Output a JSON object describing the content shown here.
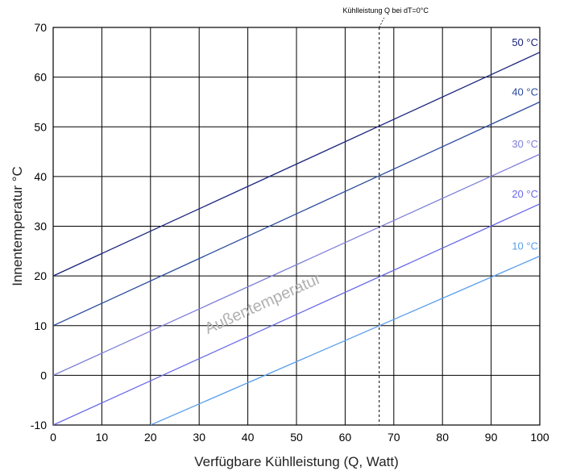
{
  "chart_data": {
    "type": "line",
    "title": "",
    "xlabel": "Verfügbare Kühlleistung (Q, Watt)",
    "ylabel": "Innentemperatur °C",
    "xlim": [
      0,
      100
    ],
    "ylim": [
      -10,
      70
    ],
    "xticks": [
      0,
      10,
      20,
      30,
      40,
      50,
      60,
      70,
      80,
      90,
      100
    ],
    "yticks": [
      -10,
      0,
      10,
      20,
      30,
      40,
      50,
      60,
      70
    ],
    "grid": true,
    "series": [
      {
        "name": "50 °C",
        "color": "#1a237e",
        "x": [
          0,
          100
        ],
        "y": [
          20,
          65
        ]
      },
      {
        "name": "40 °C",
        "color": "#2a4a9e",
        "x": [
          0,
          100
        ],
        "y": [
          10,
          55
        ]
      },
      {
        "name": "30 °C",
        "color": "#8080d8",
        "x": [
          0,
          100
        ],
        "y": [
          0,
          44.5
        ]
      },
      {
        "name": "20 °C",
        "color": "#6a6ae8",
        "x": [
          0,
          100
        ],
        "y": [
          -10,
          34.5
        ]
      },
      {
        "name": "10 °C",
        "color": "#5aa0ec",
        "x": [
          20,
          100
        ],
        "y": [
          -10,
          24
        ]
      }
    ],
    "annotations": {
      "vline_x": 67,
      "vline_label": "Kühlleistung Q bei dT=0°C",
      "rotated_label": "Außentemperatur"
    }
  }
}
